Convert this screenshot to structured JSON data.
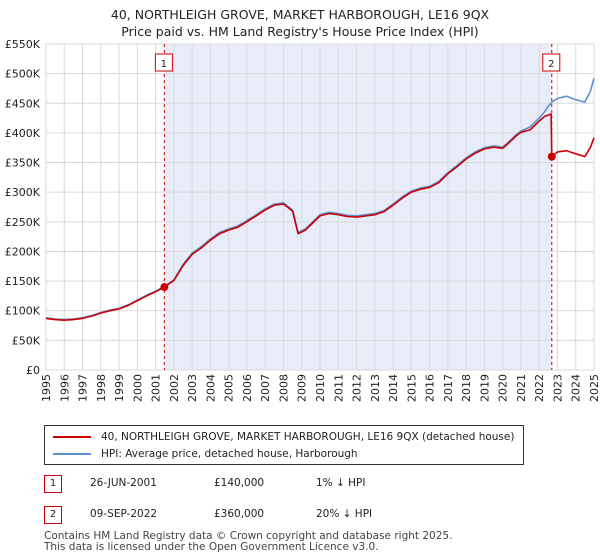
{
  "title": {
    "line1": "40, NORTHLEIGH GROVE, MARKET HARBOROUGH, LE16 9QX",
    "line2": "Price paid vs. HM Land Registry's House Price Index (HPI)"
  },
  "colors": {
    "property": "#cc0000",
    "hpi": "#5b8fd0",
    "shade": "#e8ecf8",
    "grid": "#d9d9d9",
    "vline": "#cc0000"
  },
  "legend": {
    "property_label": "40, NORTHLEIGH GROVE, MARKET HARBOROUGH, LE16 9QX (detached house)",
    "hpi_label": "HPI: Average price, detached house, Harborough"
  },
  "transactions": [
    {
      "num": "1",
      "date": "26-JUN-2001",
      "price": "£140,000",
      "hpi": "1% ↓ HPI"
    },
    {
      "num": "2",
      "date": "09-SEP-2022",
      "price": "£360,000",
      "hpi": "20% ↓ HPI"
    }
  ],
  "footer": {
    "line1": "Contains HM Land Registry data © Crown copyright and database right 2025.",
    "line2": "This data is licensed under the Open Government Licence v3.0."
  },
  "chart_data": {
    "type": "line",
    "title": "40, NORTHLEIGH GROVE, MARKET HARBOROUGH, LE16 9QX",
    "xlim": [
      1995,
      2025
    ],
    "ylim": [
      0,
      550000
    ],
    "yticks": [
      0,
      50000,
      100000,
      150000,
      200000,
      250000,
      300000,
      350000,
      400000,
      450000,
      500000,
      550000
    ],
    "ytick_labels": [
      "£0",
      "£50K",
      "£100K",
      "£150K",
      "£200K",
      "£250K",
      "£300K",
      "£350K",
      "£400K",
      "£450K",
      "£500K",
      "£550K"
    ],
    "xticks": [
      1995,
      1996,
      1997,
      1998,
      1999,
      2000,
      2001,
      2002,
      2003,
      2004,
      2005,
      2006,
      2007,
      2008,
      2009,
      2010,
      2011,
      2012,
      2013,
      2014,
      2015,
      2016,
      2017,
      2018,
      2019,
      2020,
      2021,
      2022,
      2023,
      2024,
      2025
    ],
    "xtick_labels": [
      "1995",
      "1996",
      "1997",
      "1998",
      "1999",
      "2000",
      "2001",
      "2002",
      "2003",
      "2004",
      "2005",
      "2006",
      "2007",
      "2008",
      "2009",
      "2010",
      "2011",
      "2012",
      "2013",
      "2014",
      "2015",
      "2016",
      "2017",
      "2018",
      "2019",
      "2020",
      "2021",
      "2022",
      "2023",
      "2024",
      "2025"
    ],
    "grid": true,
    "shaded_region": [
      2001.48,
      2022.69
    ],
    "markers": [
      {
        "label": "1",
        "x": 2001.48,
        "y": 140000
      },
      {
        "label": "2",
        "x": 2022.69,
        "y": 360000
      }
    ],
    "series": [
      {
        "name": "HPI: Average price, detached house, Harborough",
        "x": [
          1995.0,
          1995.5,
          1996.0,
          1996.5,
          1997.0,
          1997.5,
          1998.0,
          1998.5,
          1999.0,
          1999.5,
          2000.0,
          2000.5,
          2001.0,
          2001.48,
          2002.0,
          2002.5,
          2003.0,
          2003.5,
          2004.0,
          2004.5,
          2005.0,
          2005.5,
          2006.0,
          2006.5,
          2007.0,
          2007.5,
          2008.0,
          2008.5,
          2008.8,
          2009.2,
          2009.6,
          2010.0,
          2010.5,
          2011.0,
          2011.5,
          2012.0,
          2012.5,
          2013.0,
          2013.5,
          2014.0,
          2014.5,
          2015.0,
          2015.5,
          2016.0,
          2016.5,
          2017.0,
          2017.5,
          2018.0,
          2018.5,
          2019.0,
          2019.5,
          2020.0,
          2020.3,
          2020.7,
          2021.0,
          2021.5,
          2022.0,
          2022.3,
          2022.5,
          2022.69,
          2023.0,
          2023.5,
          2024.0,
          2024.5,
          2024.8,
          2025.0
        ],
        "values": [
          88000,
          86000,
          85000,
          86000,
          88000,
          92000,
          97000,
          101000,
          104000,
          110000,
          118000,
          126000,
          133000,
          141000,
          152000,
          178000,
          197000,
          208000,
          221000,
          232000,
          238000,
          243000,
          252000,
          262000,
          272000,
          280000,
          282000,
          270000,
          232000,
          238000,
          250000,
          262000,
          266000,
          264000,
          261000,
          260000,
          262000,
          264000,
          269000,
          280000,
          292000,
          302000,
          307000,
          310000,
          318000,
          333000,
          345000,
          358000,
          368000,
          375000,
          378000,
          376000,
          384000,
          396000,
          403000,
          410000,
          425000,
          436000,
          445000,
          452000,
          458000,
          462000,
          456000,
          452000,
          470000,
          492000
        ]
      },
      {
        "name": "40, NORTHLEIGH GROVE, MARKET HARBOROUGH, LE16 9QX (detached house)",
        "x": [
          1995.0,
          1995.5,
          1996.0,
          1996.5,
          1997.0,
          1997.5,
          1998.0,
          1998.5,
          1999.0,
          1999.5,
          2000.0,
          2000.5,
          2001.0,
          2001.48,
          2002.0,
          2002.5,
          2003.0,
          2003.5,
          2004.0,
          2004.5,
          2005.0,
          2005.5,
          2006.0,
          2006.5,
          2007.0,
          2007.5,
          2008.0,
          2008.5,
          2008.8,
          2009.2,
          2009.6,
          2010.0,
          2010.5,
          2011.0,
          2011.5,
          2012.0,
          2012.5,
          2013.0,
          2013.5,
          2014.0,
          2014.5,
          2015.0,
          2015.5,
          2016.0,
          2016.5,
          2017.0,
          2017.5,
          2018.0,
          2018.5,
          2019.0,
          2019.5,
          2020.0,
          2020.3,
          2020.7,
          2021.0,
          2021.5,
          2022.0,
          2022.3,
          2022.5,
          2022.65,
          2022.69,
          2023.0,
          2023.5,
          2024.0,
          2024.5,
          2024.8,
          2025.0
        ],
        "values": [
          87000,
          85000,
          84000,
          85000,
          87000,
          91000,
          96000,
          100000,
          103000,
          109000,
          117000,
          125000,
          132000,
          140000,
          151000,
          176000,
          195000,
          206000,
          219000,
          230000,
          236000,
          241000,
          250000,
          260000,
          270000,
          278000,
          280000,
          268000,
          230000,
          236000,
          248000,
          260000,
          264000,
          262000,
          259000,
          258000,
          260000,
          262000,
          267000,
          278000,
          290000,
          300000,
          305000,
          308000,
          316000,
          331000,
          343000,
          356000,
          366000,
          373000,
          376000,
          374000,
          382000,
          394000,
          401000,
          405000,
          420000,
          428000,
          430000,
          432000,
          360000,
          368000,
          370000,
          365000,
          360000,
          375000,
          392000
        ]
      }
    ]
  }
}
